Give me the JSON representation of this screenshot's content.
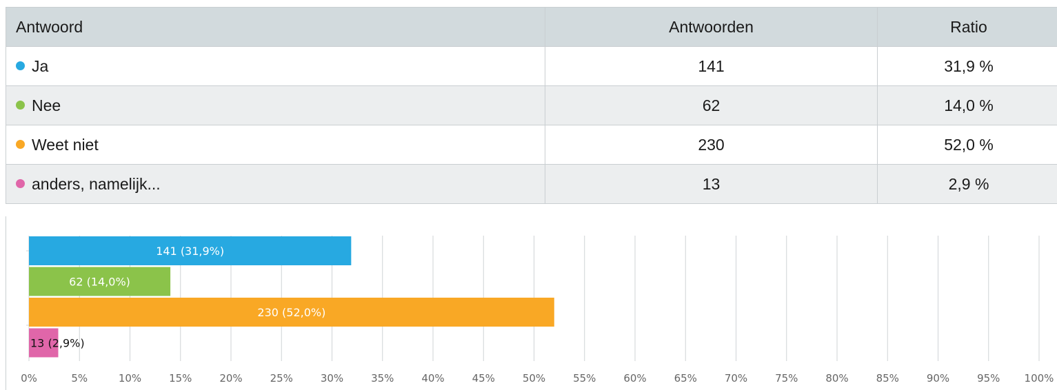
{
  "table": {
    "headers": [
      "Antwoord",
      "Antwoorden",
      "Ratio"
    ],
    "rows": [
      {
        "answer": "Ja",
        "count": "141",
        "ratio": "31,9 %",
        "color": "#27a9e1"
      },
      {
        "answer": "Nee",
        "count": "62",
        "ratio": "14,0 %",
        "color": "#8bc34a"
      },
      {
        "answer": "Weet niet",
        "count": "230",
        "ratio": "52,0 %",
        "color": "#f9a825"
      },
      {
        "answer": "anders, namelijk...",
        "count": "13",
        "ratio": "2,9 %",
        "color": "#e066a9"
      }
    ]
  },
  "chart_data": {
    "type": "bar",
    "orientation": "horizontal",
    "categories": [
      "Ja",
      "Nee",
      "Weet niet",
      "anders, namelijk..."
    ],
    "values": [
      31.9,
      14.0,
      52.0,
      2.9
    ],
    "data_labels": [
      "141 (31,9%)",
      "62 (14,0%)",
      "230 (52,0%)",
      "13 (2,9%)"
    ],
    "colors": [
      "#27a9e1",
      "#8bc34a",
      "#f9a825",
      "#e066a9"
    ],
    "xlim": [
      0,
      100
    ],
    "xticks": [
      "0%",
      "5%",
      "10%",
      "15%",
      "20%",
      "25%",
      "30%",
      "35%",
      "40%",
      "45%",
      "50%",
      "55%",
      "60%",
      "65%",
      "70%",
      "75%",
      "80%",
      "85%",
      "90%",
      "95%",
      "100%"
    ],
    "grid": "vertical"
  }
}
